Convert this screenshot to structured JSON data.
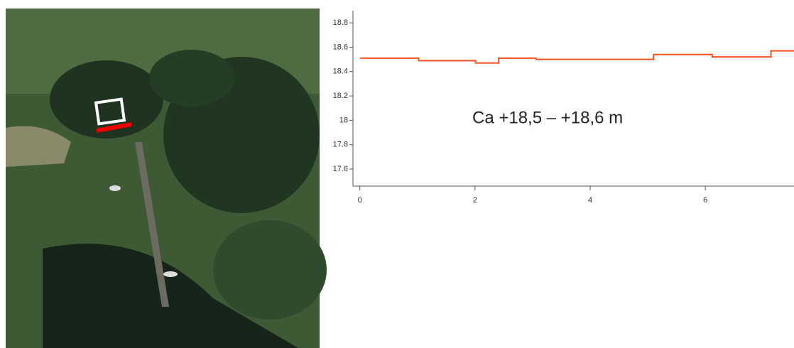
{
  "chart_data": {
    "type": "line",
    "annotation": "Ca +18,5 – +18,6 m",
    "x": [
      0,
      1.02,
      1.02,
      2.01,
      2.01,
      2.41,
      2.41,
      3.06,
      3.06,
      5.1,
      5.1,
      6.12,
      6.12,
      7.14,
      7.14,
      7.54
    ],
    "series": [
      {
        "color": "#f4511e",
        "values": [
          18.51,
          18.51,
          18.49,
          18.49,
          18.47,
          18.47,
          18.51,
          18.51,
          18.5,
          18.5,
          18.54,
          18.54,
          18.52,
          18.52,
          18.57,
          18.57
        ]
      }
    ],
    "xlim": [
      -0.12,
      7.54
    ],
    "xticks": [
      0,
      2,
      4,
      6
    ],
    "ylim": [
      17.46,
      18.9
    ],
    "yticks": [
      17.6,
      17.8,
      18,
      18.2,
      18.4,
      18.6,
      18.8
    ]
  }
}
